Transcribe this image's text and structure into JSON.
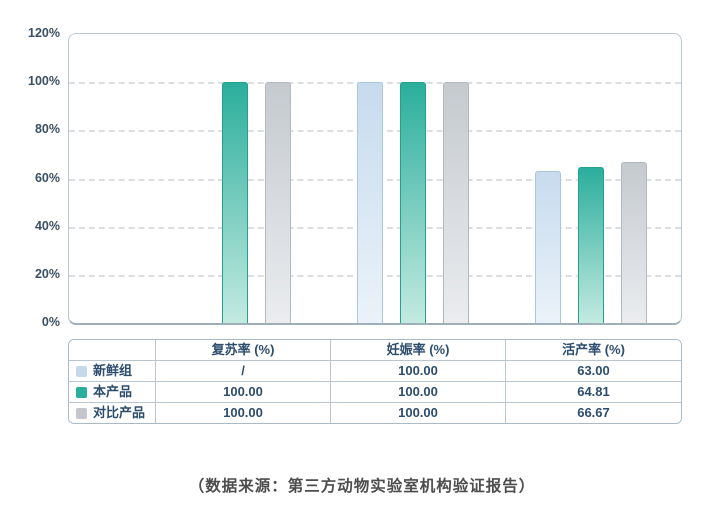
{
  "colors": {
    "axis_text": "#3a4f63",
    "table_text": "#2d4d6e",
    "grid_line": "#dcdfe2",
    "plot_border": "#bcc8d1",
    "axis_baseline": "#9cafbb",
    "table_border": "#b9c6d0",
    "caption_text": "#4d4d4d"
  },
  "chart_data": {
    "type": "bar",
    "title": "",
    "xlabel": "",
    "ylabel": "",
    "categories": [
      "复苏率 (%)",
      "妊娠率 (%)",
      "活产率 (%)"
    ],
    "series": [
      {
        "key": "fresh-group",
        "name": "新鲜组",
        "values": [
          null,
          100,
          63
        ],
        "color_top": "#c7dbee",
        "color_bottom": "#ebf2f9",
        "border": "#aac7dd",
        "swatch": "#c5d9e8"
      },
      {
        "key": "our-product",
        "name": "本产品",
        "values": [
          100,
          100,
          64.81
        ],
        "color_top": "#2bae9c",
        "color_bottom": "#c3eae1",
        "border": "#23a18f",
        "swatch": "#2bae9c"
      },
      {
        "key": "comparison-product",
        "name": "对比产品",
        "values": [
          100,
          100,
          66.67
        ],
        "color_top": "#c5cacf",
        "color_bottom": "#eaecef",
        "border": "#b2b8bf",
        "swatch": "#c3c7cc"
      }
    ],
    "ylim": [
      0,
      120
    ],
    "yticks": [
      "120%",
      "100%",
      "80%",
      "60%",
      "40%",
      "20%",
      "0%"
    ],
    "ytick_values": [
      120,
      100,
      80,
      60,
      40,
      20,
      0
    ],
    "gridline_values": [
      100,
      80,
      60,
      40,
      20
    ],
    "grid": true,
    "legend_position": "table-row-labels"
  },
  "table": {
    "headers": [
      "",
      "复苏率 (%)",
      "妊娠率 (%)",
      "活产率 (%)"
    ],
    "rows": [
      {
        "label": "新鲜组",
        "values": [
          "/",
          "100.00",
          "63.00"
        ]
      },
      {
        "label": "本产品",
        "values": [
          "100.00",
          "100.00",
          "64.81"
        ]
      },
      {
        "label": "对比产品",
        "values": [
          "100.00",
          "100.00",
          "66.67"
        ]
      }
    ]
  },
  "caption": "（数据来源：第三方动物实验室机构验证报告）"
}
